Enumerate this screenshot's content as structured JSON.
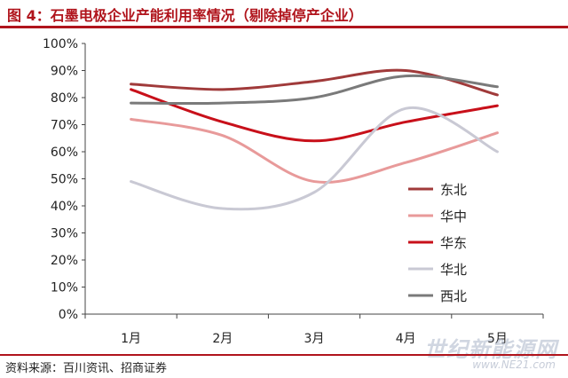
{
  "figure": {
    "title": "图 4：石墨电极企业产能利用率情况（剔除掉停产企业）",
    "source": "资料来源：百川资讯、招商证券",
    "watermark": "世纪新能源网",
    "watermark_url": "www.NE21.com"
  },
  "chart_data": {
    "type": "line",
    "title": "",
    "xlabel": "",
    "ylabel": "",
    "categories": [
      "1月",
      "2月",
      "3月",
      "4月",
      "5月"
    ],
    "ylim": [
      0,
      100
    ],
    "yticks": [
      "0%",
      "10%",
      "20%",
      "30%",
      "40%",
      "50%",
      "60%",
      "70%",
      "80%",
      "90%",
      "100%"
    ],
    "grid": false,
    "legend_position": "right",
    "smooth": true,
    "series": [
      {
        "name": "东北",
        "color": "#a03a3a",
        "values": [
          85,
          83,
          86,
          90,
          81
        ]
      },
      {
        "name": "华中",
        "color": "#e89a9a",
        "values": [
          72,
          66,
          49,
          56,
          67
        ]
      },
      {
        "name": "华东",
        "color": "#c8101a",
        "values": [
          83,
          71,
          64,
          71,
          77
        ]
      },
      {
        "name": "华北",
        "color": "#c9c9d4",
        "values": [
          49,
          39,
          45,
          76,
          60
        ]
      },
      {
        "name": "西北",
        "color": "#7a7a7a",
        "values": [
          78,
          78,
          80,
          88,
          84
        ]
      }
    ]
  }
}
